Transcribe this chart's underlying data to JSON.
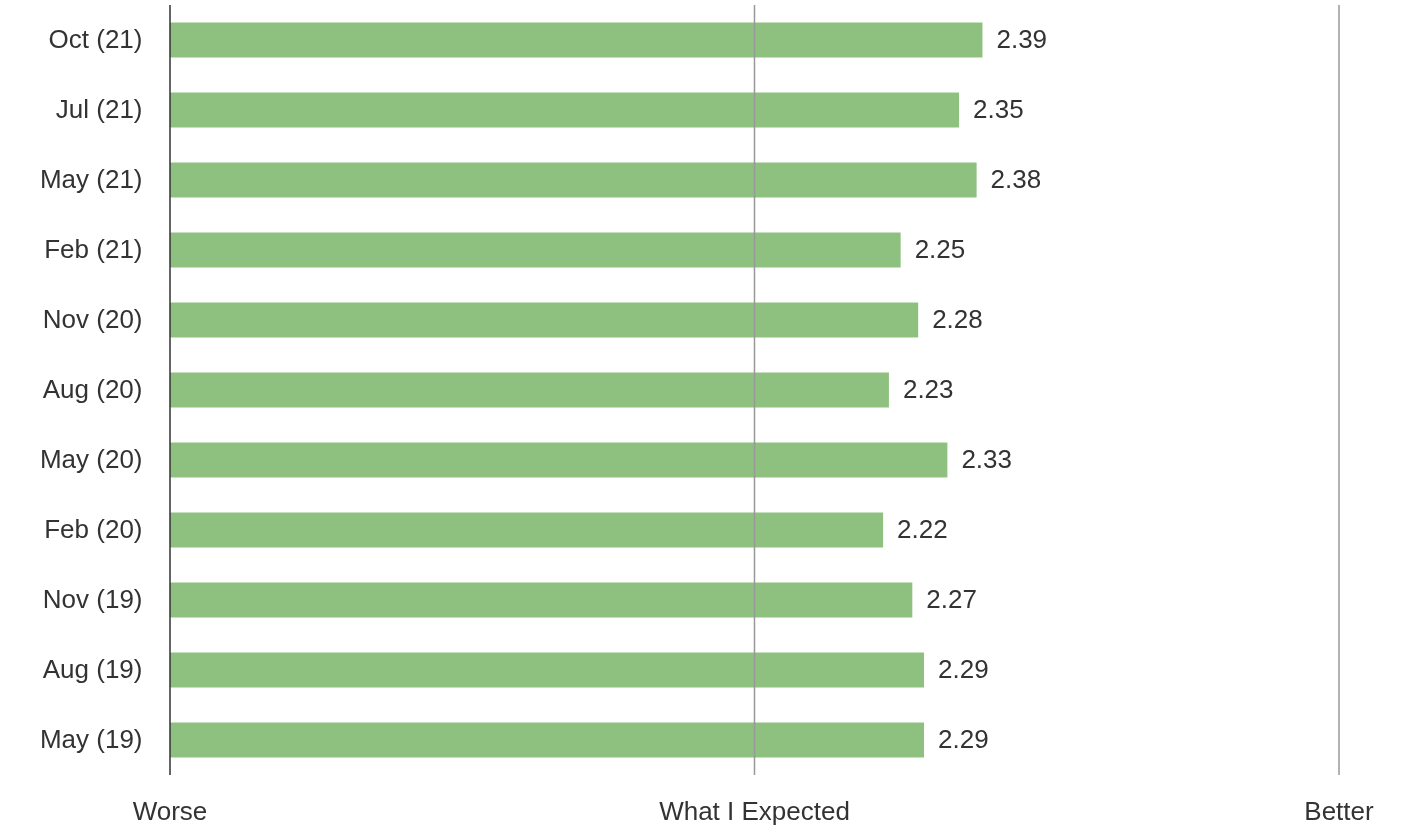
{
  "chart_data": {
    "type": "bar",
    "orientation": "horizontal",
    "categories": [
      "Oct (21)",
      "Jul (21)",
      "May (21)",
      "Feb (21)",
      "Nov (20)",
      "Aug (20)",
      "May (20)",
      "Feb (20)",
      "Nov (19)",
      "Aug (19)",
      "May (19)"
    ],
    "values": [
      2.39,
      2.35,
      2.38,
      2.25,
      2.28,
      2.23,
      2.33,
      2.22,
      2.27,
      2.29,
      2.29
    ],
    "color": "#88bd78",
    "xlim": [
      1,
      3
    ],
    "ref_lines": [
      {
        "axis": "x",
        "value": 1,
        "label": "Worse",
        "color": "#333333"
      },
      {
        "axis": "x",
        "value": 2,
        "label": "What I Expected",
        "color": "#999999"
      },
      {
        "axis": "x",
        "value": 3,
        "label": "Better",
        "color": "#999999"
      }
    ],
    "tick_labels": "y",
    "data_labels": true
  }
}
